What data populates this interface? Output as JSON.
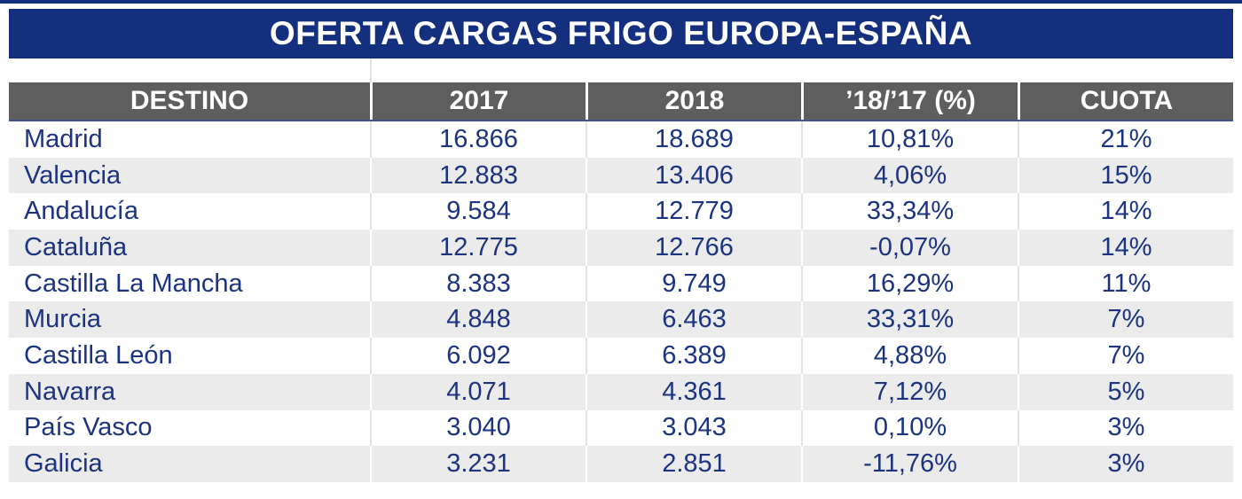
{
  "title": "OFERTA CARGAS FRIGO EUROPA-ESPAÑA",
  "colors": {
    "title_bar_navy": "#132f7e",
    "top_border_navy": "#132f7e",
    "header_gray": "#5e5e5e",
    "header_underline_blue": "#3d5494",
    "row_alternate_gray": "#ebebeb",
    "cell_text_navy": "#1b3380",
    "header_text": "#ffffff"
  },
  "table": {
    "columns": [
      "DESTINO",
      "2017",
      "2018",
      "’18/’17 (%)",
      "CUOTA"
    ],
    "rows": [
      [
        "Madrid",
        "16.866",
        "18.689",
        "10,81%",
        "21%"
      ],
      [
        "Valencia",
        "12.883",
        "13.406",
        "4,06%",
        "15%"
      ],
      [
        "Andalucía",
        "9.584",
        "12.779",
        "33,34%",
        "14%"
      ],
      [
        "Cataluña",
        "12.775",
        "12.766",
        "-0,07%",
        "14%"
      ],
      [
        "Castilla La Mancha",
        "8.383",
        "9.749",
        "16,29%",
        "11%"
      ],
      [
        "Murcia",
        "4.848",
        "6.463",
        "33,31%",
        "7%"
      ],
      [
        "Castilla León",
        "6.092",
        "6.389",
        "4,88%",
        "7%"
      ],
      [
        "Navarra",
        "4.071",
        "4.361",
        "7,12%",
        "5%"
      ],
      [
        "País Vasco",
        "3.040",
        "3.043",
        "0,10%",
        "3%"
      ],
      [
        "Galicia",
        "3.231",
        "2.851",
        "-11,76%",
        "3%"
      ]
    ]
  },
  "chart_data": {
    "type": "table",
    "title": "OFERTA CARGAS FRIGO EUROPA-ESPAÑA",
    "columns": [
      "DESTINO",
      "2017",
      "2018",
      "’18/’17 (%)",
      "CUOTA"
    ],
    "destinations": [
      "Madrid",
      "Valencia",
      "Andalucía",
      "Cataluña",
      "Castilla La Mancha",
      "Murcia",
      "Castilla León",
      "Navarra",
      "País Vasco",
      "Galicia"
    ],
    "values_2017": [
      16866,
      12883,
      9584,
      12775,
      8383,
      4848,
      6092,
      4071,
      3040,
      3231
    ],
    "values_2018": [
      18689,
      13406,
      12779,
      12766,
      9749,
      6463,
      6389,
      4361,
      3043,
      2851
    ],
    "pct_change_18_17": [
      10.81,
      4.06,
      33.34,
      -0.07,
      16.29,
      33.31,
      4.88,
      7.12,
      0.1,
      -11.76
    ],
    "cuota_pct": [
      21,
      15,
      14,
      14,
      11,
      7,
      7,
      5,
      3,
      3
    ],
    "number_format": "es-ES (thousands '.', decimals ',')"
  }
}
